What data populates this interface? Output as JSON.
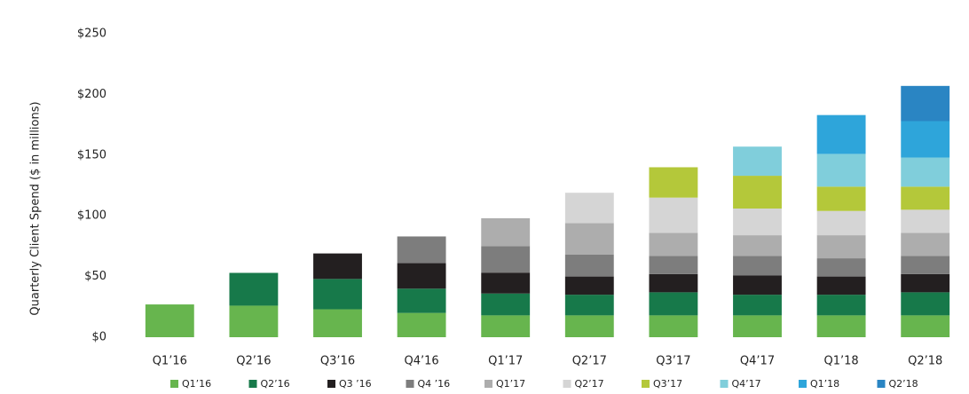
{
  "chart_data": {
    "type": "stacked_bar",
    "y_axis_label": "Quarterly Client Spend ($ in millions)",
    "categories": [
      "Q1’16",
      "Q2’16",
      "Q3’16",
      "Q4’16",
      "Q1’17",
      "Q2’17",
      "Q3’17",
      "Q4’17",
      "Q1’18",
      "Q2’18"
    ],
    "series": [
      {
        "name": "Q1’16",
        "color": "#67b54e",
        "values": [
          27,
          26,
          23,
          20,
          18,
          18,
          18,
          18,
          18,
          18
        ]
      },
      {
        "name": "Q2’16",
        "color": "#17794a",
        "values": [
          null,
          27,
          25,
          20,
          18,
          17,
          19,
          17,
          17,
          19
        ]
      },
      {
        "name": "Q3 ’16",
        "color": "#231f20",
        "values": [
          null,
          null,
          21,
          21,
          17,
          15,
          15,
          16,
          15,
          15
        ]
      },
      {
        "name": "Q4 ’16",
        "color": "#7d7d7d",
        "values": [
          null,
          null,
          null,
          22,
          22,
          18,
          15,
          16,
          15,
          15
        ]
      },
      {
        "name": "Q1’17",
        "color": "#adadad",
        "values": [
          null,
          null,
          null,
          null,
          23,
          26,
          19,
          17,
          19,
          19
        ]
      },
      {
        "name": "Q2’17",
        "color": "#d5d5d5",
        "values": [
          null,
          null,
          null,
          null,
          null,
          25,
          29,
          22,
          20,
          19
        ]
      },
      {
        "name": "Q3’17",
        "color": "#b4c83a",
        "values": [
          null,
          null,
          null,
          null,
          null,
          null,
          25,
          27,
          20,
          19
        ]
      },
      {
        "name": "Q4’17",
        "color": "#80cedb",
        "values": [
          null,
          null,
          null,
          null,
          null,
          null,
          null,
          24,
          27,
          24
        ]
      },
      {
        "name": "Q1’18",
        "color": "#2ea5da",
        "values": [
          null,
          null,
          null,
          null,
          null,
          null,
          null,
          null,
          32,
          30
        ]
      },
      {
        "name": "Q2’18",
        "color": "#2a85c3",
        "values": [
          null,
          null,
          null,
          null,
          null,
          null,
          null,
          null,
          null,
          29
        ]
      }
    ],
    "ylim": [
      0,
      250
    ],
    "yticks": [
      {
        "value": 0,
        "label": "$0"
      },
      {
        "value": 50,
        "label": "$50"
      },
      {
        "value": 100,
        "label": "$100"
      },
      {
        "value": 150,
        "label": "$150"
      },
      {
        "value": 200,
        "label": "$200"
      },
      {
        "value": 250,
        "label": "$250"
      }
    ],
    "grid": false
  }
}
